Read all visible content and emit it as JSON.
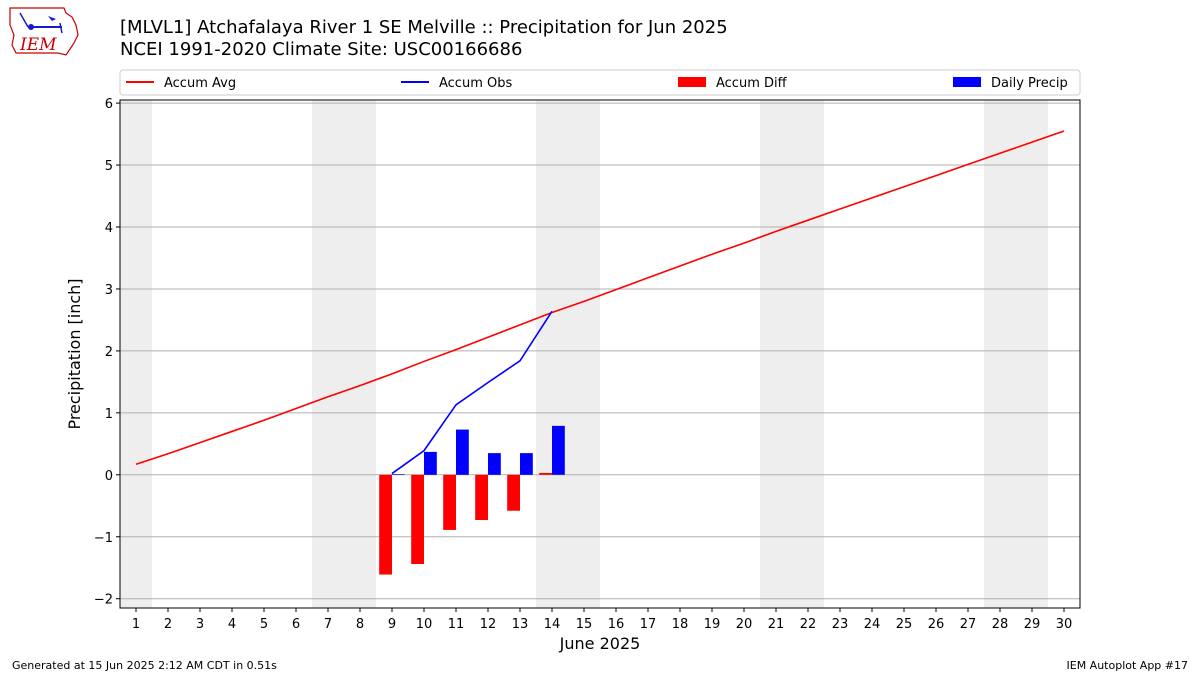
{
  "header": {
    "title_line1": "[MLVL1] Atchafalaya River 1 SE Melville :: Precipitation for Jun 2025",
    "title_line2": "NCEI 1991-2020 Climate Site: USC00166686",
    "logo_text": "IEM"
  },
  "footer": {
    "left": "Generated at 15 Jun 2025 2:12 AM CDT in 0.51s",
    "right": "IEM Autoplot App #17"
  },
  "colors": {
    "avg": "#ff0000",
    "obs": "#0000ff",
    "diff": "#ff0000",
    "daily": "#0000ff",
    "weekend_band": "#eeeeee",
    "grid": "#b0b0b0"
  },
  "chart_data": {
    "type": "bar",
    "xlabel": "June 2025",
    "ylabel": "Precipitation [inch]",
    "xlim": [
      0.5,
      30.5
    ],
    "ylim": [
      -2.15,
      6.05
    ],
    "x_ticks": [
      1,
      2,
      3,
      4,
      5,
      6,
      7,
      8,
      9,
      10,
      11,
      12,
      13,
      14,
      15,
      16,
      17,
      18,
      19,
      20,
      21,
      22,
      23,
      24,
      25,
      26,
      27,
      28,
      29,
      30
    ],
    "x_tick_labels": [
      "1",
      "2",
      "3",
      "4",
      "5",
      "6",
      "7",
      "8",
      "9",
      "10",
      "11",
      "12",
      "13",
      "14",
      "15",
      "16",
      "17",
      "18",
      "19",
      "20",
      "21",
      "22",
      "23",
      "24",
      "25",
      "26",
      "27",
      "28",
      "29",
      "30"
    ],
    "y_ticks": [
      -2,
      -1,
      0,
      1,
      2,
      3,
      4,
      5,
      6
    ],
    "y_tick_labels": [
      "−2",
      "−1",
      "0",
      "1",
      "2",
      "3",
      "4",
      "5",
      "6"
    ],
    "grid": "horizontal",
    "legend_position": "top",
    "shaded_day_ranges": [
      [
        0.5,
        1.5
      ],
      [
        6.5,
        8.5
      ],
      [
        13.5,
        15.5
      ],
      [
        20.5,
        22.5
      ],
      [
        27.5,
        29.5
      ]
    ],
    "series": [
      {
        "name": "Accum Avg",
        "type": "line",
        "x": [
          1,
          2,
          3,
          4,
          5,
          6,
          7,
          8,
          9,
          10,
          11,
          12,
          13,
          14,
          15,
          16,
          17,
          18,
          19,
          20,
          21,
          22,
          23,
          24,
          25,
          26,
          27,
          28,
          29,
          30
        ],
        "values": [
          0.17,
          0.34,
          0.52,
          0.7,
          0.88,
          1.07,
          1.26,
          1.44,
          1.63,
          1.83,
          2.02,
          2.22,
          2.42,
          2.62,
          2.8,
          2.99,
          3.18,
          3.37,
          3.56,
          3.74,
          3.93,
          4.11,
          4.29,
          4.47,
          4.65,
          4.83,
          5.01,
          5.19,
          5.37,
          5.55
        ]
      },
      {
        "name": "Accum Obs",
        "type": "line",
        "x": [
          9,
          10,
          11,
          12,
          13,
          14
        ],
        "values": [
          0.02,
          0.39,
          1.13,
          1.49,
          1.84,
          2.64
        ]
      },
      {
        "name": "Accum Diff",
        "type": "bar",
        "x": [
          9,
          10,
          11,
          12,
          13,
          14
        ],
        "values": [
          -1.61,
          -1.44,
          -0.89,
          -0.73,
          -0.58,
          0.03
        ]
      },
      {
        "name": "Daily Precip",
        "type": "bar",
        "x": [
          9,
          10,
          11,
          12,
          13,
          14
        ],
        "values": [
          0.01,
          0.37,
          0.73,
          0.35,
          0.35,
          0.79
        ]
      }
    ]
  }
}
